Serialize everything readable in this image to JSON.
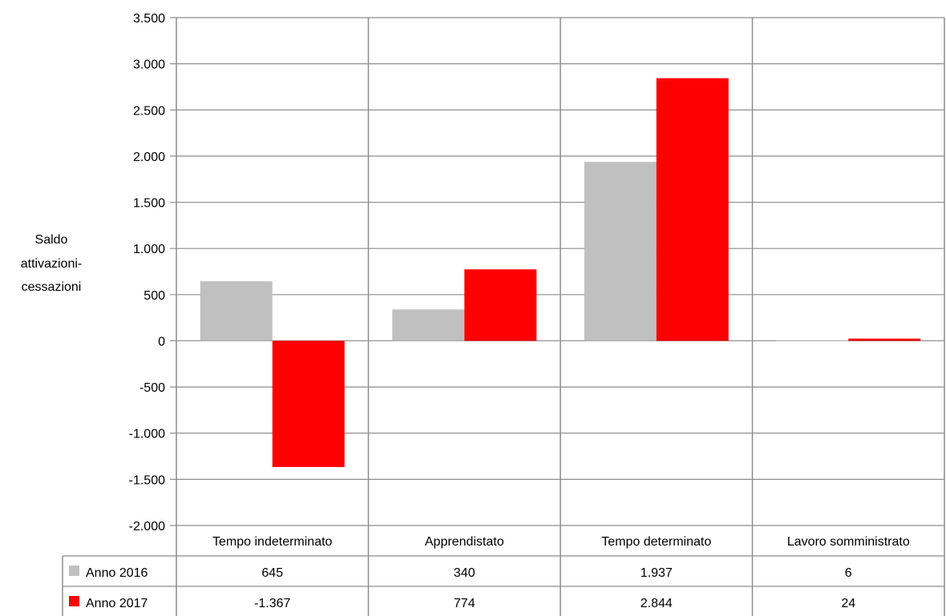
{
  "chart_data": {
    "type": "bar",
    "ylabel": [
      "Saldo",
      "attivazioni-",
      "cessazioni"
    ],
    "ylim": [
      -2000,
      3500
    ],
    "ytick_values": [
      3500,
      3000,
      2500,
      2000,
      1500,
      1000,
      500,
      0,
      -500,
      -1000,
      -1500,
      -2000
    ],
    "ytick_labels": [
      "3.500",
      "3.000",
      "2.500",
      "2.000",
      "1.500",
      "1.000",
      "500",
      "0",
      "-500",
      "-1.000",
      "-1.500",
      "-2.000"
    ],
    "categories": [
      "Tempo indeterminato",
      "Apprendistato",
      "Tempo determinato",
      "Lavoro somministrato"
    ],
    "series": [
      {
        "name": "Anno 2016",
        "color": "#c0c0c0",
        "values": [
          645,
          340,
          1937,
          6
        ],
        "labels": [
          "645",
          "340",
          "1.937",
          "6"
        ]
      },
      {
        "name": "Anno 2017",
        "color": "#ff0000",
        "values": [
          -1367,
          774,
          2844,
          24
        ],
        "labels": [
          "-1.367",
          "774",
          "2.844",
          "24"
        ]
      }
    ],
    "grid": true,
    "legend": "data-table"
  }
}
